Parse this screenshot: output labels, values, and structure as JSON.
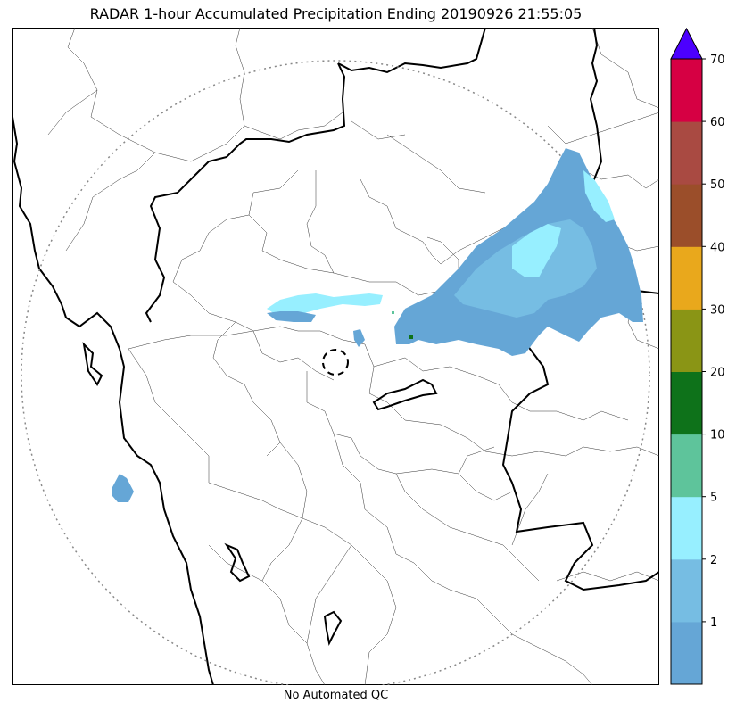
{
  "title": "RADAR 1-hour Accumulated Precipitation Ending 20190926 21:55:05",
  "footer": "No Automated QC",
  "colorbar": {
    "levels": [
      {
        "label": "",
        "color": "#65a6d6"
      },
      {
        "label": "1",
        "color": "#76bde3"
      },
      {
        "label": "2",
        "color": "#97efff"
      },
      {
        "label": "5",
        "color": "#5ec49b"
      },
      {
        "label": "10",
        "color": "#0e721a"
      },
      {
        "label": "20",
        "color": "#8a9515"
      },
      {
        "label": "30",
        "color": "#e9a81c"
      },
      {
        "label": "40",
        "color": "#9b4e2a"
      },
      {
        "label": "50",
        "color": "#a94a42"
      },
      {
        "label": "60",
        "color": "#d60043"
      },
      {
        "label": "70",
        "color": ""
      }
    ],
    "extend_color": "#4c00ff"
  }
}
